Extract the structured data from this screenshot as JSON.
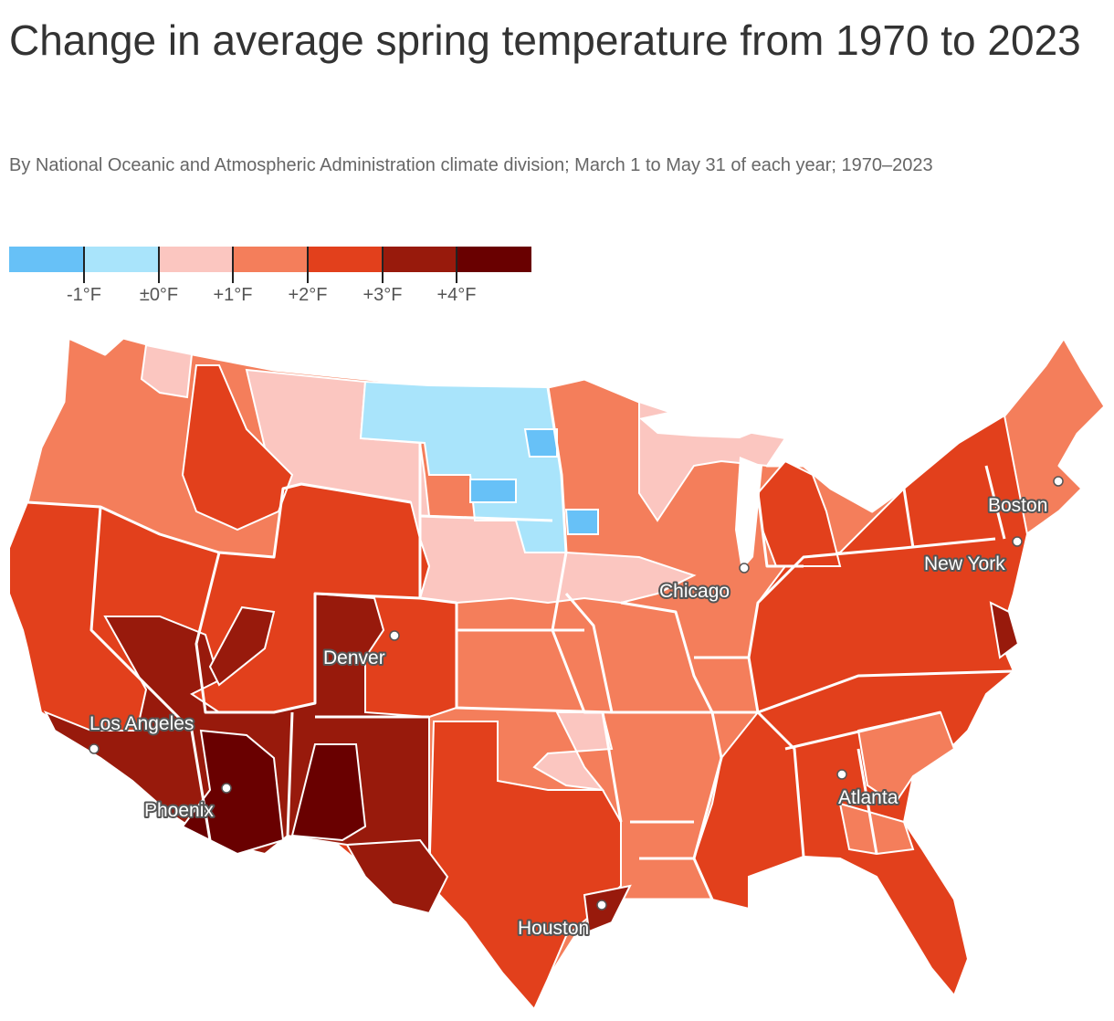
{
  "header": {
    "title": "Change in average spring temperature from 1970 to 2023",
    "subtitle": "By National Oceanic and Atmospheric Administration climate division; March 1 to May 31 of each year; 1970–2023"
  },
  "legend": {
    "colors": [
      "#67c1f7",
      "#a9e4fb",
      "#fbc6c0",
      "#f47e5b",
      "#e2401c",
      "#981a0c",
      "#690000"
    ],
    "ticks": [
      "-1°F",
      "±0°F",
      "+1°F",
      "+2°F",
      "+3°F",
      "+4°F"
    ]
  },
  "cities": [
    {
      "name": "Boston"
    },
    {
      "name": "New York"
    },
    {
      "name": "Chicago"
    },
    {
      "name": "Denver"
    },
    {
      "name": "Los Angeles"
    },
    {
      "name": "Phoenix"
    },
    {
      "name": "Atlanta"
    },
    {
      "name": "Houston"
    }
  ]
}
